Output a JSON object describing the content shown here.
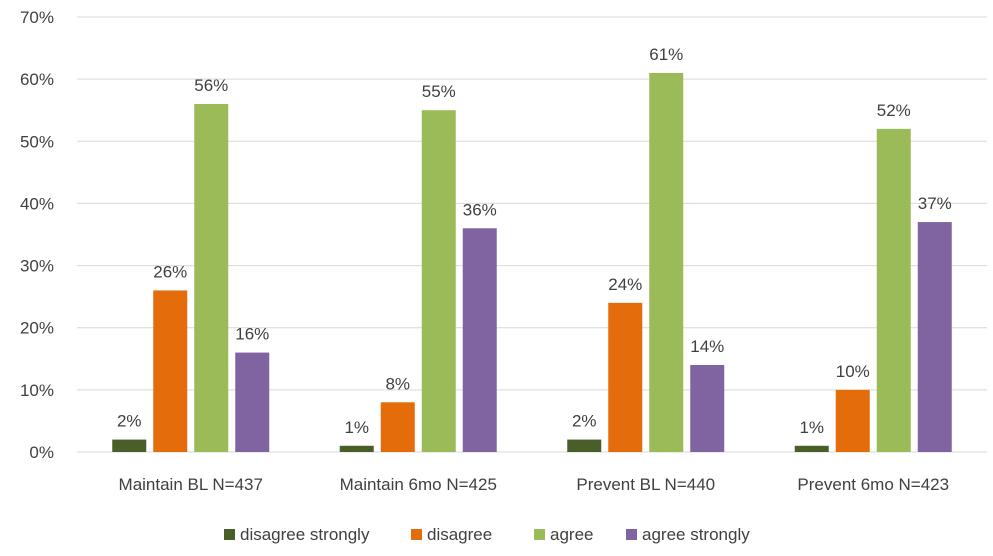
{
  "chart_data": {
    "type": "bar",
    "categories": [
      "Maintain BL N=437",
      "Maintain 6mo N=425",
      "Prevent BL N=440",
      "Prevent 6mo N=423"
    ],
    "series": [
      {
        "name": "disagree strongly",
        "color": "#4a5e2a",
        "values": [
          2,
          1,
          2,
          1
        ],
        "labels": [
          "2%",
          "1%",
          "2%",
          "1%"
        ]
      },
      {
        "name": "disagree",
        "color": "#e46c0a",
        "values": [
          26,
          8,
          24,
          10
        ],
        "labels": [
          "26%",
          "8%",
          "24%",
          "10%"
        ]
      },
      {
        "name": "agree",
        "color": "#9bbb59",
        "values": [
          56,
          55,
          61,
          52
        ],
        "labels": [
          "56%",
          "55%",
          "61%",
          "52%"
        ]
      },
      {
        "name": "agree strongly",
        "color": "#8064a2",
        "values": [
          16,
          36,
          14,
          37
        ],
        "labels": [
          "16%",
          "36%",
          "14%",
          "37%"
        ]
      }
    ],
    "ylim": [
      0,
      70
    ],
    "yticks": [
      "0%",
      "10%",
      "20%",
      "30%",
      "40%",
      "50%",
      "60%",
      "70%"
    ],
    "grid": true,
    "legend_position": "bottom",
    "gridline_color": "#d9d9d9"
  }
}
